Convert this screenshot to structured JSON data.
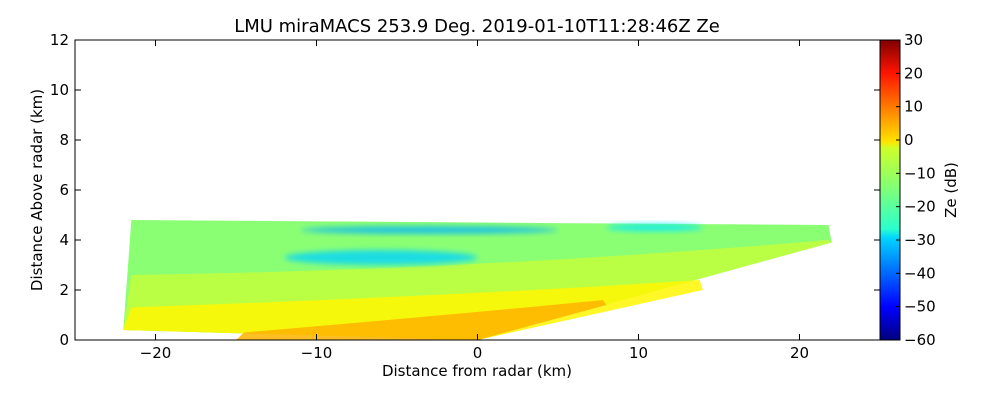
{
  "chart_data": {
    "type": "heatmap",
    "title": "LMU miraMACS 253.9 Deg. 2019-01-10T11:28:46Z  Ze",
    "xlabel": "Distance from radar (km)",
    "ylabel": "Distance Above radar  (km)",
    "xlim": [
      -25,
      25
    ],
    "ylim": [
      0,
      12
    ],
    "xticks": [
      -20,
      -10,
      0,
      10,
      20
    ],
    "xtick_labels": [
      "−20",
      "−10",
      "0",
      "10",
      "20"
    ],
    "yticks": [
      0,
      2,
      4,
      6,
      8,
      10,
      12
    ],
    "ytick_labels": [
      "0",
      "2",
      "4",
      "6",
      "8",
      "10",
      "12"
    ],
    "grid": false,
    "colorbar": {
      "label": "Ze (dB)",
      "range": [
        -60,
        30
      ],
      "ticks": [
        -60,
        -50,
        -40,
        -30,
        -20,
        -10,
        0,
        10,
        20,
        30
      ],
      "tick_labels": [
        "−60",
        "−50",
        "−40",
        "−30",
        "−20",
        "−10",
        "0",
        "10",
        "20",
        "30"
      ],
      "colormap": "jet"
    },
    "echo_layers": [
      {
        "x_left": -22,
        "x_right": 22,
        "bottom_left": 0.4,
        "top_left": 4.8,
        "top_center": 4.5,
        "bottom_right": 3.9,
        "top_right": 4.6,
        "ze": -14
      },
      {
        "x_left": -22,
        "x_right": 22,
        "bottom_left": 0.4,
        "top_left": 2.6,
        "top_center": 2.6,
        "bottom_right": 3.9,
        "top_right": 4.0,
        "ze": -9
      },
      {
        "x_left": -22,
        "x_right": 14,
        "bottom_left": 0.4,
        "top_left": 1.3,
        "top_center": 1.6,
        "bottom_right": 2.0,
        "top_right": 2.4,
        "ze": -3
      },
      {
        "x_left": -15,
        "x_right": 8,
        "bottom_left": 0.0,
        "top_left": 0.3,
        "top_center": 0.9,
        "bottom_right": 1.4,
        "top_right": 1.6,
        "ze": 3
      }
    ],
    "features": [
      {
        "x": -3,
        "y": 4.4,
        "rx": 8,
        "ry": 0.15,
        "ze": -33
      },
      {
        "x": -6,
        "y": 3.3,
        "rx": 6,
        "ry": 0.3,
        "ze": -30
      },
      {
        "x": 11,
        "y": 4.5,
        "rx": 3,
        "ry": 0.15,
        "ze": -28
      }
    ]
  }
}
